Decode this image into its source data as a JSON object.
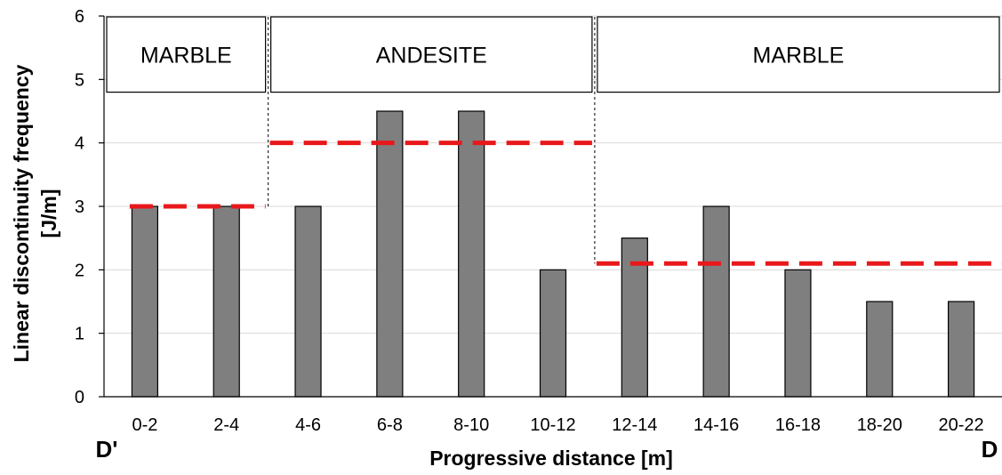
{
  "chart_data": {
    "type": "bar",
    "categories": [
      "0-2",
      "2-4",
      "4-6",
      "6-8",
      "8-10",
      "10-12",
      "12-14",
      "14-16",
      "16-18",
      "18-20",
      "20-22"
    ],
    "values": [
      3,
      3,
      3,
      4.5,
      4.5,
      2,
      2.5,
      3,
      2,
      1.5,
      1.5
    ],
    "ylim": [
      0,
      6
    ],
    "yticks": [
      "0",
      "1",
      "2",
      "3",
      "4",
      "5",
      "6"
    ],
    "xlabel": "Progressive distance [m]",
    "ylabel": [
      "Linear discontinuity frequency",
      "[J/m]"
    ],
    "grid": true,
    "left_endpoint": "D'",
    "right_endpoint": "D",
    "zones": [
      {
        "label": "MARBLE",
        "from_category": 0,
        "to_category": 1,
        "mean": 3
      },
      {
        "label": "ANDESITE",
        "from_category": 2,
        "to_category": 5,
        "mean": 4
      },
      {
        "label": "MARBLE",
        "from_category": 6,
        "to_category": 10,
        "mean": 2.1
      }
    ],
    "colors": {
      "bar": "#7f7f7f",
      "mean_line": "#e8181b",
      "grid": "#d9d9d9"
    }
  }
}
